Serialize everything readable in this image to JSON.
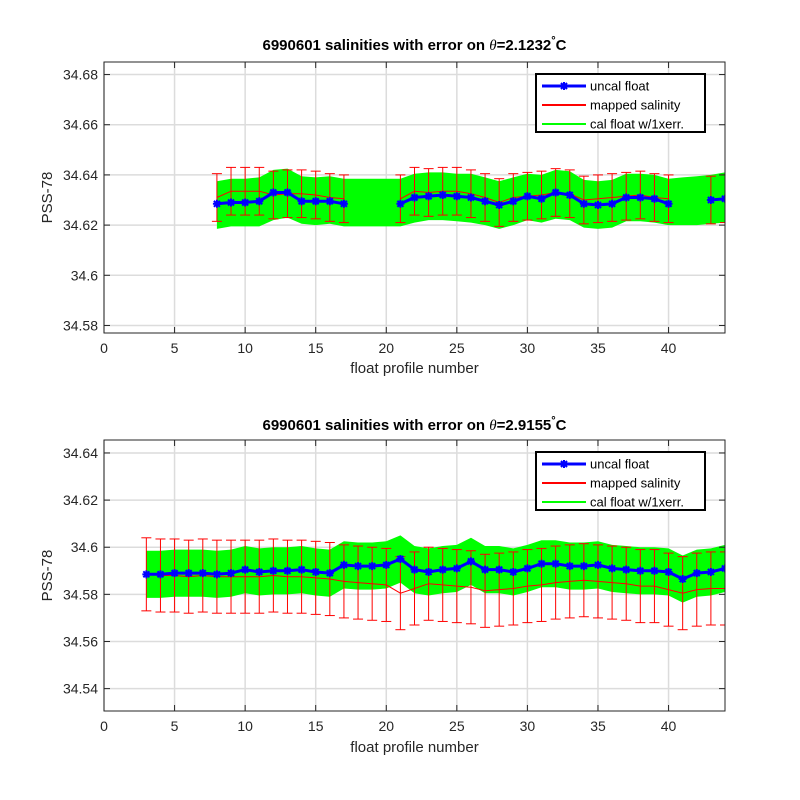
{
  "chart_data": [
    {
      "type": "line",
      "title": "6990601 salinities with error on θ=2.1232°C",
      "title_prefix": "6990601 salinities with error on ",
      "title_theta": "θ",
      "title_value": "=2.1232",
      "title_unit": "C",
      "xlabel": "float profile number",
      "ylabel": "PSS-78",
      "xlim": [
        0,
        44
      ],
      "ylim": [
        34.577,
        34.685
      ],
      "xticks": [
        "0",
        "5",
        "10",
        "15",
        "20",
        "25",
        "30",
        "35",
        "40"
      ],
      "xtick_values": [
        0,
        5,
        10,
        15,
        20,
        25,
        30,
        35,
        40
      ],
      "yticks": [
        "34.58",
        "34.6",
        "34.62",
        "34.64",
        "34.66",
        "34.68"
      ],
      "ytick_values": [
        34.58,
        34.6,
        34.62,
        34.64,
        34.66,
        34.68
      ],
      "grid": true,
      "legend_position": "top-right",
      "series": [
        {
          "name": "uncal float",
          "color": "#0000ff",
          "x": [
            8,
            9,
            10,
            11,
            12,
            13,
            14,
            15,
            16,
            17,
            null,
            21,
            22,
            23,
            24,
            25,
            26,
            27,
            28,
            29,
            30,
            31,
            32,
            33,
            34,
            35,
            36,
            37,
            38,
            39,
            40,
            null,
            43,
            44
          ],
          "values": [
            34.6285,
            34.629,
            34.629,
            34.6295,
            34.633,
            34.633,
            34.6295,
            34.6295,
            34.6295,
            34.6285,
            null,
            34.6285,
            34.631,
            34.6315,
            34.632,
            34.6315,
            34.631,
            34.6295,
            34.628,
            34.6295,
            34.6315,
            34.6305,
            34.633,
            34.632,
            34.6285,
            34.628,
            34.6285,
            34.631,
            34.631,
            34.6305,
            34.6285,
            null,
            34.63,
            34.6305
          ]
        },
        {
          "name": "mapped salinity",
          "color": "#ff0000",
          "x": [
            8,
            9,
            10,
            11,
            12,
            13,
            14,
            15,
            16,
            17,
            null,
            21,
            22,
            23,
            24,
            25,
            26,
            27,
            28,
            29,
            30,
            31,
            32,
            33,
            34,
            35,
            36,
            37,
            38,
            39,
            40,
            null,
            43,
            44
          ],
          "values": [
            34.631,
            34.6335,
            34.6335,
            34.6335,
            34.632,
            34.6325,
            34.6325,
            34.632,
            34.631,
            34.6305,
            null,
            34.6305,
            34.6335,
            34.633,
            34.6335,
            34.6335,
            34.6325,
            34.631,
            34.629,
            34.631,
            34.6315,
            34.632,
            34.633,
            34.6325,
            34.63,
            34.6305,
            34.631,
            34.6315,
            34.632,
            34.631,
            34.6305,
            null,
            34.63,
            34.6305
          ],
          "error": 0.0095
        },
        {
          "name": "cal float w/1xerr.",
          "color": "#00ff00",
          "x": [
            8,
            9,
            10,
            11,
            12,
            13,
            14,
            15,
            16,
            17,
            18,
            19,
            20,
            21,
            22,
            23,
            24,
            25,
            26,
            27,
            28,
            29,
            30,
            31,
            32,
            33,
            34,
            35,
            36,
            37,
            38,
            39,
            40,
            41,
            42,
            43,
            44
          ],
          "lower": [
            34.6185,
            34.6195,
            34.6195,
            34.6195,
            34.622,
            34.623,
            34.6205,
            34.62,
            34.6205,
            34.6195,
            34.6195,
            34.6195,
            34.6195,
            34.6195,
            34.621,
            34.622,
            34.622,
            34.6215,
            34.621,
            34.62,
            34.6185,
            34.62,
            34.622,
            34.621,
            34.6225,
            34.622,
            34.619,
            34.6185,
            34.619,
            34.6215,
            34.6215,
            34.621,
            34.62,
            34.62,
            34.62,
            34.6205,
            34.621
          ],
          "upper": [
            34.6375,
            34.6385,
            34.6385,
            34.639,
            34.642,
            34.6425,
            34.6395,
            34.639,
            34.6395,
            34.6385,
            34.6385,
            34.6385,
            34.6385,
            34.6385,
            34.6405,
            34.641,
            34.641,
            34.6405,
            34.6405,
            34.639,
            34.6375,
            34.639,
            34.6405,
            34.64,
            34.642,
            34.6415,
            34.638,
            34.6375,
            34.638,
            34.6405,
            34.6405,
            34.64,
            34.6385,
            34.639,
            34.6395,
            34.64,
            34.641
          ]
        }
      ]
    },
    {
      "type": "line",
      "title": "6990601 salinities with error on θ=2.9155°C",
      "title_prefix": "6990601 salinities with error on ",
      "title_theta": "θ",
      "title_value": "=2.9155",
      "title_unit": "C",
      "xlabel": "float profile number",
      "ylabel": "PSS-78",
      "xlim": [
        0,
        44
      ],
      "ylim": [
        34.5305,
        34.6455
      ],
      "xticks": [
        "0",
        "5",
        "10",
        "15",
        "20",
        "25",
        "30",
        "35",
        "40"
      ],
      "xtick_values": [
        0,
        5,
        10,
        15,
        20,
        25,
        30,
        35,
        40
      ],
      "yticks": [
        "34.54",
        "34.56",
        "34.58",
        "34.6",
        "34.62",
        "34.64"
      ],
      "ytick_values": [
        34.54,
        34.56,
        34.58,
        34.6,
        34.62,
        34.64
      ],
      "grid": true,
      "legend_position": "top-right",
      "series": [
        {
          "name": "uncal float",
          "color": "#0000ff",
          "x": [
            3,
            4,
            5,
            6,
            7,
            8,
            9,
            10,
            11,
            12,
            13,
            14,
            15,
            16,
            17,
            18,
            19,
            20,
            21,
            22,
            23,
            24,
            25,
            26,
            27,
            28,
            29,
            30,
            31,
            32,
            33,
            34,
            35,
            36,
            37,
            38,
            39,
            40,
            41,
            42,
            43,
            44
          ],
          "values": [
            34.5885,
            34.5885,
            34.589,
            34.589,
            34.589,
            34.5885,
            34.589,
            34.5905,
            34.5895,
            34.59,
            34.59,
            34.5905,
            34.5895,
            34.589,
            34.5925,
            34.592,
            34.592,
            34.5925,
            34.595,
            34.5905,
            34.5895,
            34.5905,
            34.591,
            34.594,
            34.5905,
            34.5905,
            34.5895,
            34.591,
            34.593,
            34.593,
            34.592,
            34.592,
            34.5925,
            34.591,
            34.5905,
            34.59,
            34.59,
            34.5895,
            34.5865,
            34.589,
            34.5895,
            34.591
          ]
        },
        {
          "name": "mapped salinity",
          "color": "#ff0000",
          "x": [
            3,
            4,
            5,
            6,
            7,
            8,
            9,
            10,
            11,
            12,
            13,
            14,
            15,
            16,
            17,
            18,
            19,
            20,
            21,
            22,
            23,
            24,
            25,
            26,
            27,
            28,
            29,
            30,
            31,
            32,
            33,
            34,
            35,
            36,
            37,
            38,
            39,
            40,
            41,
            42,
            43,
            44
          ],
          "values": [
            34.5885,
            34.588,
            34.588,
            34.5875,
            34.588,
            34.5875,
            34.5875,
            34.5875,
            34.5875,
            34.588,
            34.5875,
            34.5875,
            34.587,
            34.5865,
            34.5855,
            34.585,
            34.5845,
            34.584,
            34.5805,
            34.5825,
            34.5845,
            34.584,
            34.5835,
            34.583,
            34.5815,
            34.582,
            34.5825,
            34.5835,
            34.584,
            34.585,
            34.5855,
            34.586,
            34.5855,
            34.585,
            34.5845,
            34.5835,
            34.5835,
            34.582,
            34.5805,
            34.582,
            34.5825,
            34.5825
          ],
          "error": 0.0155
        },
        {
          "name": "cal float w/1xerr.",
          "color": "#00ff00",
          "x": [
            3,
            4,
            5,
            6,
            7,
            8,
            9,
            10,
            11,
            12,
            13,
            14,
            15,
            16,
            17,
            18,
            19,
            20,
            21,
            22,
            23,
            24,
            25,
            26,
            27,
            28,
            29,
            30,
            31,
            32,
            33,
            34,
            35,
            36,
            37,
            38,
            39,
            40,
            41,
            42,
            43,
            44
          ],
          "lower": [
            34.5785,
            34.5785,
            34.579,
            34.579,
            34.579,
            34.5785,
            34.579,
            34.5805,
            34.5795,
            34.58,
            34.58,
            34.5805,
            34.5795,
            34.579,
            34.5825,
            34.582,
            34.582,
            34.5825,
            34.585,
            34.5805,
            34.5795,
            34.5805,
            34.581,
            34.584,
            34.5805,
            34.5805,
            34.5795,
            34.581,
            34.583,
            34.583,
            34.582,
            34.582,
            34.5825,
            34.581,
            34.5805,
            34.58,
            34.58,
            34.5795,
            34.5765,
            34.579,
            34.5795,
            34.581
          ],
          "upper": [
            34.5985,
            34.5985,
            34.599,
            34.599,
            34.599,
            34.5985,
            34.599,
            34.6005,
            34.5995,
            34.6,
            34.6,
            34.6005,
            34.5995,
            34.599,
            34.6025,
            34.602,
            34.602,
            34.6025,
            34.605,
            34.6005,
            34.5995,
            34.6005,
            34.601,
            34.604,
            34.6005,
            34.6005,
            34.5995,
            34.601,
            34.603,
            34.603,
            34.602,
            34.602,
            34.6025,
            34.601,
            34.6005,
            34.6,
            34.6,
            34.5995,
            34.5965,
            34.599,
            34.5995,
            34.601
          ]
        }
      ]
    }
  ]
}
